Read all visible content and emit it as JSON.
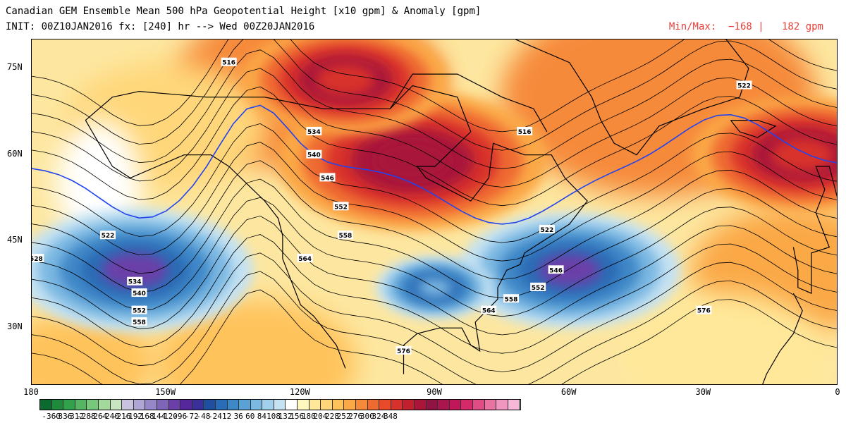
{
  "title_line1": "Canadian GEM Ensemble Mean 500 hPa Geopotential Height [x10 gpm] & Anomaly [gpm]",
  "title_line2": "INIT: 00Z10JAN2016 fx: [240] hr --> Wed 00Z20JAN2016",
  "minmax_text": "Min/Max:  −168 |   182 gpm",
  "lat_labels": [
    "75N",
    "60N",
    "45N",
    "30N"
  ],
  "lon_labels": [
    "180",
    "150W",
    "120W",
    "90W",
    "60W",
    "30W",
    "0"
  ],
  "height_labels": [
    "516",
    "522",
    "528",
    "534",
    "540",
    "546",
    "552",
    "558",
    "564",
    "576"
  ],
  "colorbar": {
    "labels": [
      "-360",
      "-336",
      "-312",
      "-288",
      "-264",
      "-240",
      "-216",
      "-192",
      "-168",
      "-144",
      "-120",
      "-96",
      "-72",
      "-48",
      "-24",
      "12",
      "36",
      "60",
      "84",
      "108",
      "132",
      "156",
      "180",
      "204",
      "228",
      "252",
      "276",
      "300",
      "324",
      "348"
    ],
    "colors": [
      "#0b6b2e",
      "#1f8a3c",
      "#33a04b",
      "#55b563",
      "#78c87c",
      "#a3d99b",
      "#c8e6c0",
      "#c9c3e0",
      "#b0a6d6",
      "#9688c8",
      "#7e65b8",
      "#6a3fa8",
      "#55279a",
      "#3b2f9a",
      "#1f4f9e",
      "#2a6cb5",
      "#3f88c8",
      "#5aa2d6",
      "#7bb8e2",
      "#a2cfec",
      "#c4e2f3",
      "#ffffff",
      "#fff7c0",
      "#ffe89a",
      "#ffd77a",
      "#ffc35c",
      "#fba847",
      "#f68a3a",
      "#ef6a30",
      "#e84a2c",
      "#d8302c",
      "#c21f2f",
      "#a9163a",
      "#8f1443",
      "#a8154f",
      "#c0175a",
      "#d42a6a",
      "#e04d86",
      "#e872a2",
      "#f097c0",
      "#f6b8d6"
    ]
  },
  "chart_data": {
    "type": "heatmap",
    "title": "Canadian GEM Ensemble Mean 500 hPa Geopotential Height [x10 gpm] & Anomaly [gpm]",
    "subtitle": "INIT: 00Z10JAN2016 fx: [240] hr --> Wed 00Z20JAN2016",
    "min_anomaly_gpm": -168,
    "max_anomaly_gpm": 182,
    "lon_range": [
      -180,
      0
    ],
    "lat_range": [
      20,
      80
    ],
    "anomaly_centers": [
      {
        "lon": -157,
        "lat": 40,
        "value": -160,
        "sign": "negative"
      },
      {
        "lon": -60,
        "lat": 40,
        "value": -150,
        "sign": "negative"
      },
      {
        "lon": -95,
        "lat": 59,
        "value": 182,
        "sign": "positive"
      },
      {
        "lon": -8,
        "lat": 60,
        "value": 150,
        "sign": "positive"
      },
      {
        "lon": -110,
        "lat": 73,
        "value": 140,
        "sign": "positive"
      },
      {
        "lon": -90,
        "lat": 37,
        "value": -80,
        "sign": "negative"
      }
    ],
    "contour_labels": [
      {
        "value": "516",
        "lon": -136,
        "lat": 76
      },
      {
        "value": "522",
        "lon": -163,
        "lat": 46
      },
      {
        "value": "528",
        "lon": -179,
        "lat": 42
      },
      {
        "value": "534",
        "lon": -157,
        "lat": 38
      },
      {
        "value": "540",
        "lon": -156,
        "lat": 36
      },
      {
        "value": "552",
        "lon": -156,
        "lat": 33
      },
      {
        "value": "558",
        "lon": -156,
        "lat": 31
      },
      {
        "value": "534",
        "lon": -117,
        "lat": 64
      },
      {
        "value": "540",
        "lon": -117,
        "lat": 60
      },
      {
        "value": "546",
        "lon": -114,
        "lat": 56
      },
      {
        "value": "552",
        "lon": -111,
        "lat": 51
      },
      {
        "value": "558",
        "lon": -110,
        "lat": 46
      },
      {
        "value": "564",
        "lon": -119,
        "lat": 42
      },
      {
        "value": "576",
        "lon": -97,
        "lat": 26
      },
      {
        "value": "564",
        "lon": -78,
        "lat": 33
      },
      {
        "value": "558",
        "lon": -73,
        "lat": 35
      },
      {
        "value": "552",
        "lon": -67,
        "lat": 37
      },
      {
        "value": "546",
        "lon": -63,
        "lat": 40
      },
      {
        "value": "522",
        "lon": -65,
        "lat": 47
      },
      {
        "value": "576",
        "lon": -30,
        "lat": 33
      },
      {
        "value": "516",
        "lon": -70,
        "lat": 64
      },
      {
        "value": "522",
        "lon": -21,
        "lat": 72
      }
    ]
  }
}
